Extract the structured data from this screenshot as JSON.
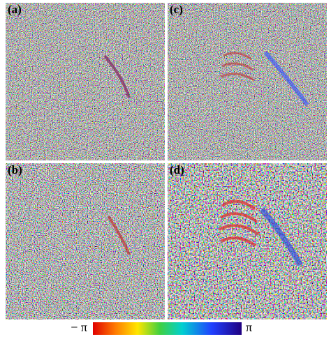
{
  "panels": [
    {
      "label": "(a)"
    },
    {
      "label": "(c)"
    },
    {
      "label": "(b)"
    },
    {
      "label": "(d)"
    }
  ],
  "colorbar": {
    "min_label": "− π",
    "max_label": "π"
  }
}
